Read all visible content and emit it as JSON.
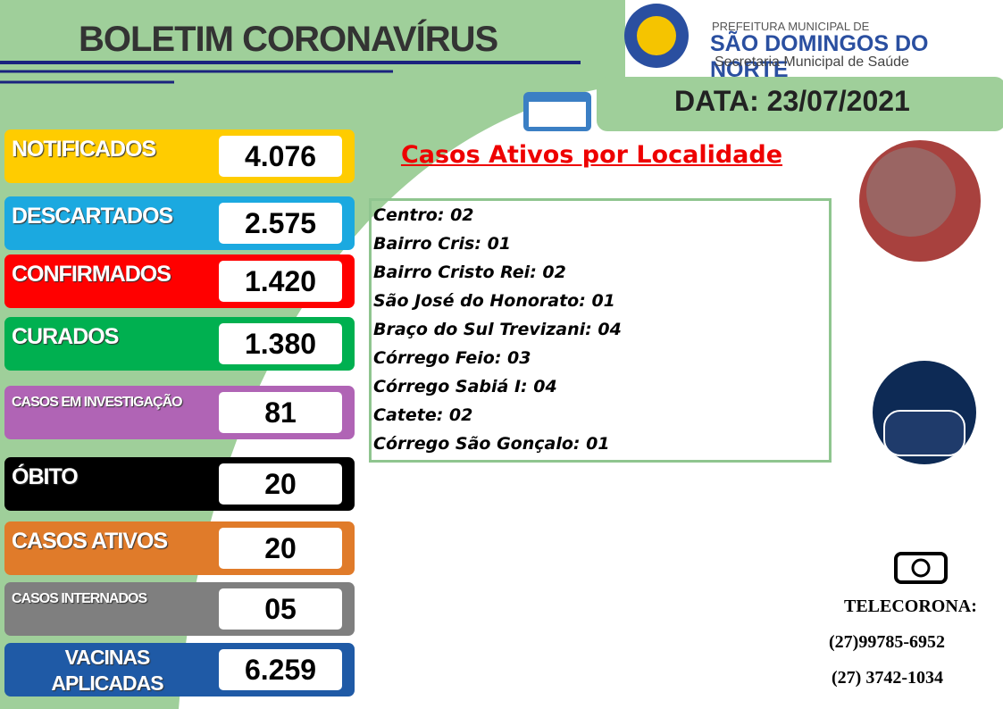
{
  "header": {
    "title": "BOLETIM CORONAVÍRUS",
    "org_line1": "PREFEITURA MUNICIPAL DE",
    "org_line2": "SÃO DOMINGOS DO NORTE",
    "org_line3": "Secretaria Municipal de Saúde"
  },
  "date": "DATA: 23/07/2021",
  "stats": [
    {
      "label": "NOTIFICADOS",
      "value": "4.076"
    },
    {
      "label": "DESCARTADOS",
      "value": "2.575"
    },
    {
      "label": "CONFIRMADOS",
      "value": "1.420"
    },
    {
      "label": "CURADOS",
      "value": "1.380"
    },
    {
      "label": "CASOS EM INVESTIGAÇÃO",
      "value": "81"
    },
    {
      "label": "ÓBITO",
      "value": "20"
    },
    {
      "label": "CASOS ATIVOS",
      "value": "20"
    },
    {
      "label": "CASOS INTERNADOS",
      "value": "05"
    },
    {
      "label": "VACINAS APLICADAS",
      "value": "6.259"
    }
  ],
  "localities": {
    "title": "Casos Ativos por Localidade",
    "items": [
      "Centro: 02",
      "Bairro Cris: 01",
      "Bairro Cristo Rei: 02",
      "São José do Honorato: 01",
      "Braço do Sul Trevizani: 04",
      "Córrego Feio: 03",
      "Córrego Sabiá I: 04",
      "Catete: 02",
      "Córrego São Gonçalo: 01"
    ]
  },
  "contact": {
    "label": "TELECORONA:",
    "phones": [
      "(27)99785-6952",
      "(27) 3742-1034"
    ]
  }
}
